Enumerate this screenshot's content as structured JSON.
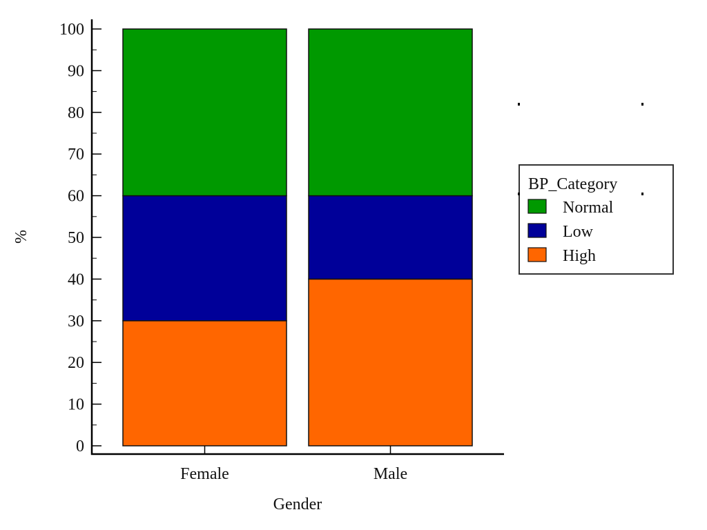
{
  "chart_data": {
    "type": "bar",
    "stacked": true,
    "title": "",
    "xlabel": "Gender",
    "ylabel": "%",
    "ylim": [
      0,
      100
    ],
    "yticks": [
      0,
      10,
      20,
      30,
      40,
      50,
      60,
      70,
      80,
      90,
      100
    ],
    "categories": [
      "Female",
      "Male"
    ],
    "series": [
      {
        "name": "High",
        "values": [
          30,
          40
        ],
        "color": "#ff6600"
      },
      {
        "name": "Low",
        "values": [
          30,
          20
        ],
        "color": "#000099"
      },
      {
        "name": "Normal",
        "values": [
          40,
          40
        ],
        "color": "#009900"
      }
    ],
    "legend": {
      "title": "BP_Category",
      "position": "right",
      "order": [
        "Normal",
        "Low",
        "High"
      ]
    },
    "grid": false
  }
}
